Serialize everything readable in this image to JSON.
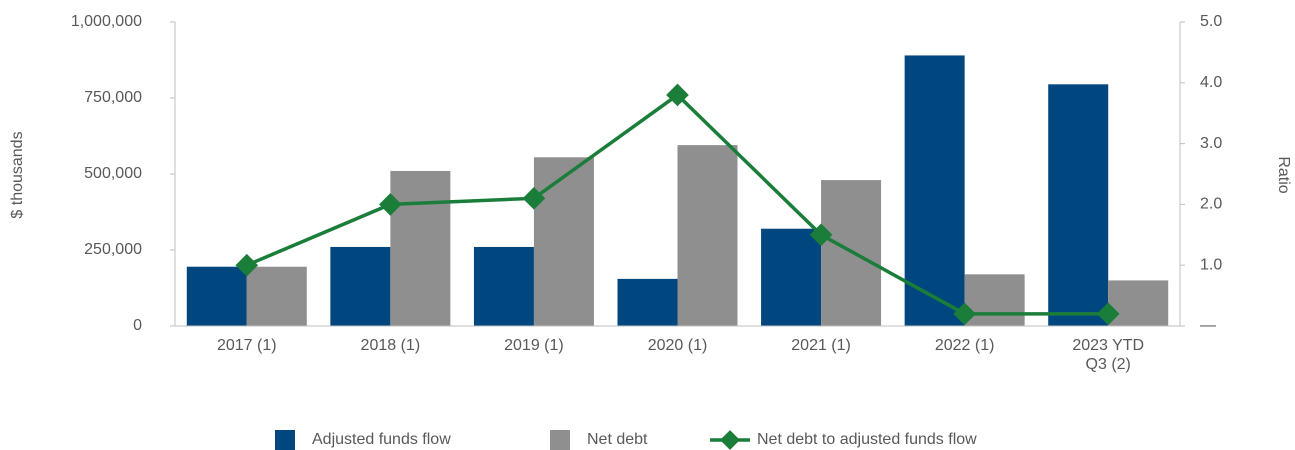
{
  "chart_data": {
    "type": "bar_line",
    "categories": [
      "2017 (1)",
      "2018 (1)",
      "2019 (1)",
      "2020 (1)",
      "2021 (1)",
      "2022 (1)",
      "2023 YTD Q3 (2)"
    ],
    "series": [
      {
        "name": "Adjusted funds flow",
        "color": "#00467f",
        "type": "bar",
        "values": [
          195000,
          260000,
          260000,
          155000,
          320000,
          890000,
          795000
        ]
      },
      {
        "name": "Net debt",
        "color": "#8f8f8f",
        "type": "bar",
        "values": [
          195000,
          510000,
          555000,
          595000,
          480000,
          170000,
          150000
        ]
      },
      {
        "name": "Net debt to adjusted funds flow",
        "color": "#1b7d3a",
        "type": "line",
        "axis": "y2",
        "values": [
          1.0,
          2.0,
          2.1,
          3.8,
          1.5,
          0.2,
          0.2
        ]
      }
    ],
    "y_label": "$ thousands",
    "y2_label": "Ratio",
    "ylim": [
      0,
      1000000
    ],
    "yticks": [
      0,
      {
        "value": 250000,
        "label": "250,000"
      },
      {
        "value": 500000,
        "label": "500,000"
      },
      {
        "value": 750000,
        "label": "750,000"
      },
      {
        "value": 1000000,
        "label": "1,000,000"
      }
    ],
    "y2lim": [
      0,
      5
    ],
    "y2ticks": [
      {
        "value": 0,
        "label": "—"
      },
      {
        "value": 1,
        "label": "1.0"
      },
      {
        "value": 2,
        "label": "2.0"
      },
      {
        "value": 3,
        "label": "3.0"
      },
      {
        "value": 4,
        "label": "4.0"
      },
      {
        "value": 5,
        "label": "5.0"
      }
    ],
    "legend": "bottom"
  }
}
